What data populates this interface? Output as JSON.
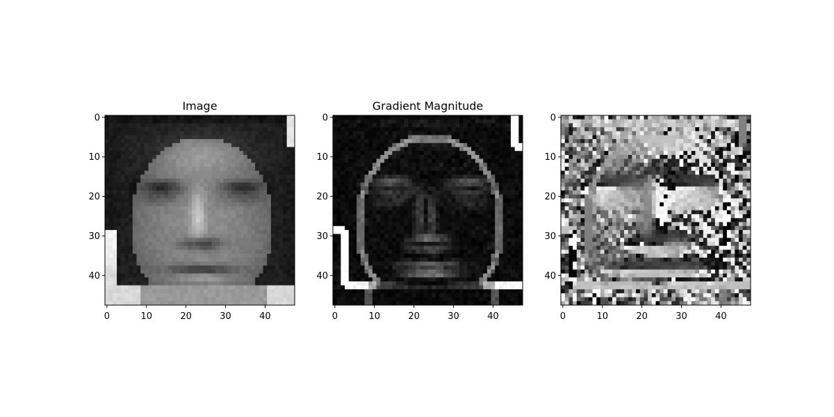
{
  "chart_data": [
    {
      "type": "heatmap",
      "title": "Image",
      "colormap": "gray",
      "grid": false,
      "xlim": [
        -0.5,
        47.5
      ],
      "ylim": [
        47.5,
        -0.5
      ],
      "xticks": [
        0,
        10,
        20,
        30,
        40
      ],
      "yticks": [
        0,
        10,
        20,
        30,
        40
      ]
    },
    {
      "type": "heatmap",
      "title": "Gradient Magnitude",
      "colormap": "gray",
      "grid": false,
      "xlim": [
        -0.5,
        47.5
      ],
      "ylim": [
        47.5,
        -0.5
      ],
      "xticks": [
        0,
        10,
        20,
        30,
        40
      ],
      "yticks": [
        0,
        10,
        20,
        30,
        40
      ]
    },
    {
      "type": "heatmap",
      "title": "",
      "colormap": "gray",
      "grid": false,
      "xlim": [
        -0.5,
        47.5
      ],
      "ylim": [
        47.5,
        -0.5
      ],
      "xticks": [
        0,
        10,
        20,
        30,
        40
      ],
      "yticks": [
        0,
        10,
        20,
        30,
        40
      ]
    }
  ]
}
